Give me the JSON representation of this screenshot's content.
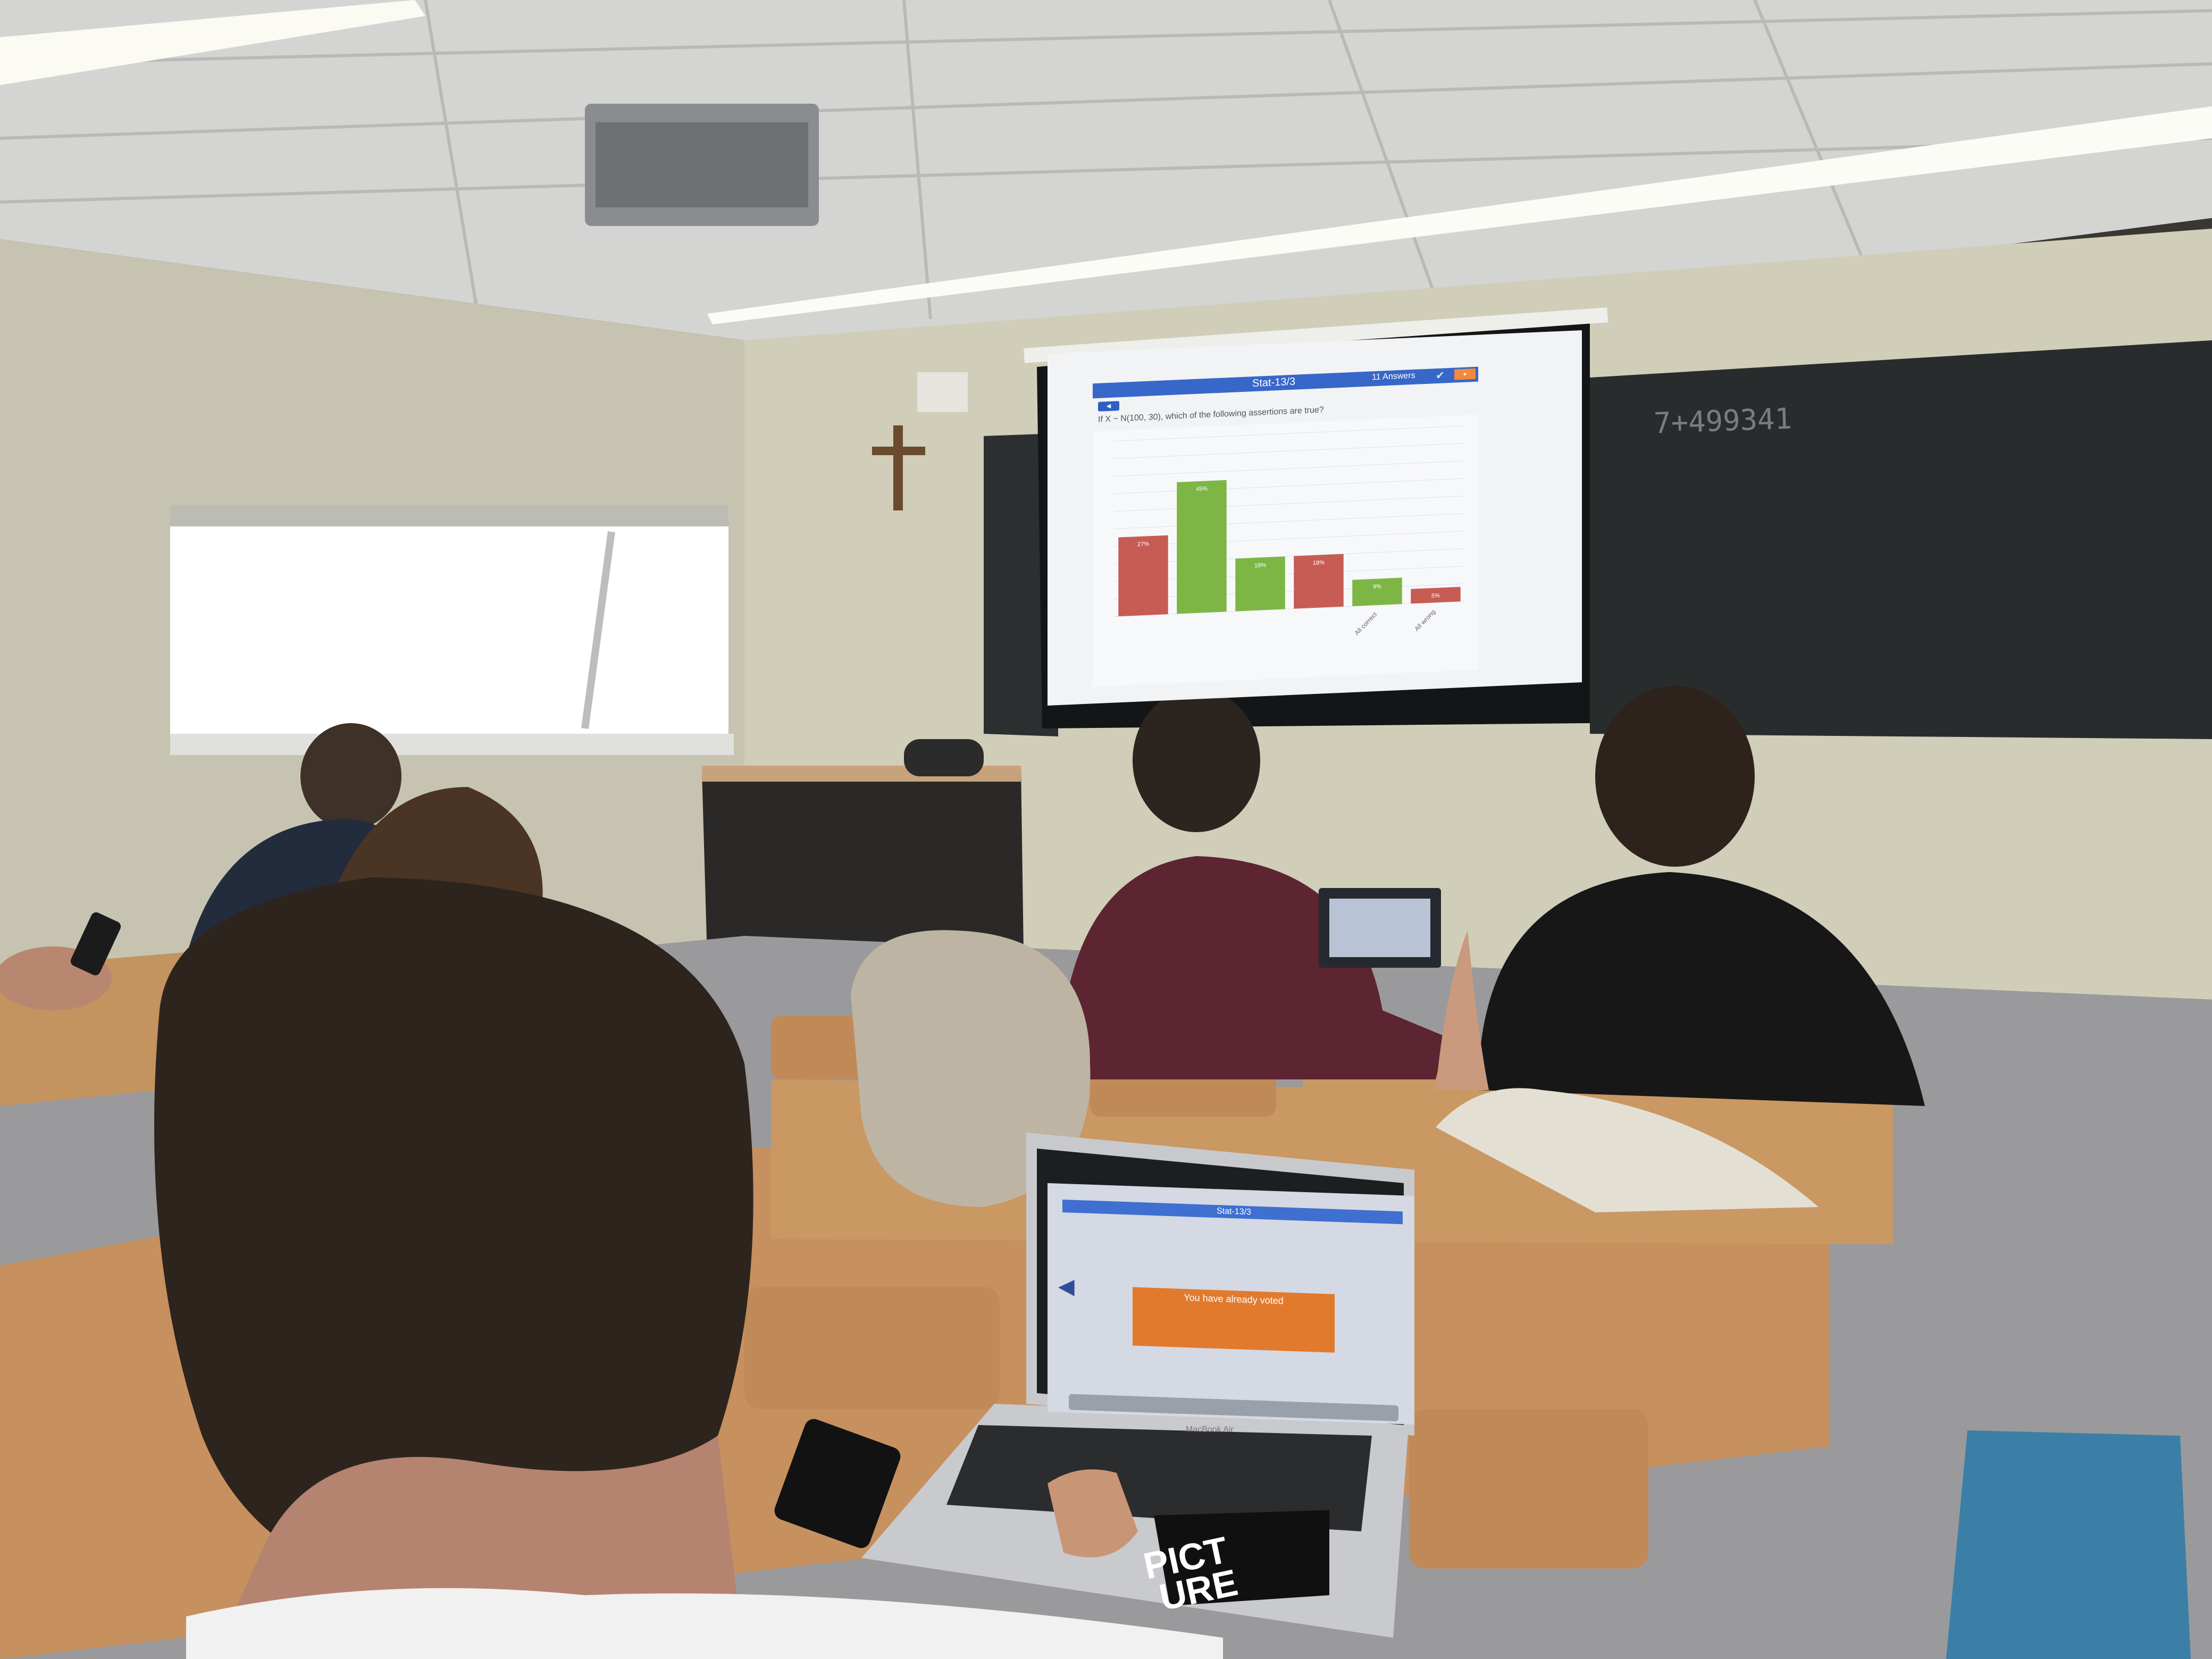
{
  "projection": {
    "title": "Stat-13/3",
    "answers": "11 Answers",
    "question": "If X ~ N(100, 30), which of the following assertions are true?"
  },
  "laptop": {
    "title": "Stat-13/3",
    "vote_status": "You have already voted",
    "brand": "MacBook Air"
  },
  "sticker": {
    "line1": "PICT",
    "line2": "URE"
  },
  "board": {
    "writing": "7+499341"
  },
  "chart_data": {
    "type": "bar",
    "categories": [
      "",
      "",
      "",
      "",
      "All correct",
      "All wrong"
    ],
    "values": [
      27,
      45,
      18,
      18,
      9,
      5
    ],
    "colors": [
      "#c75c55",
      "#7db645",
      "#7db645",
      "#c75c55",
      "#7db645",
      "#c75c55"
    ],
    "labels": [
      "27%",
      "45%",
      "18%",
      "18%",
      "9%",
      "5%"
    ],
    "ylim": [
      0,
      60
    ],
    "grid": true
  },
  "colors": {
    "wall": "#c9c5b4",
    "ceiling": "#d8d8d6",
    "blackboard": "#2a2d2c",
    "screen": "#eef1f4",
    "bar_green": "#7db645",
    "bar_red": "#c75c55",
    "accent_blue": "#3767c8",
    "accent_orange": "#e27a2e"
  }
}
